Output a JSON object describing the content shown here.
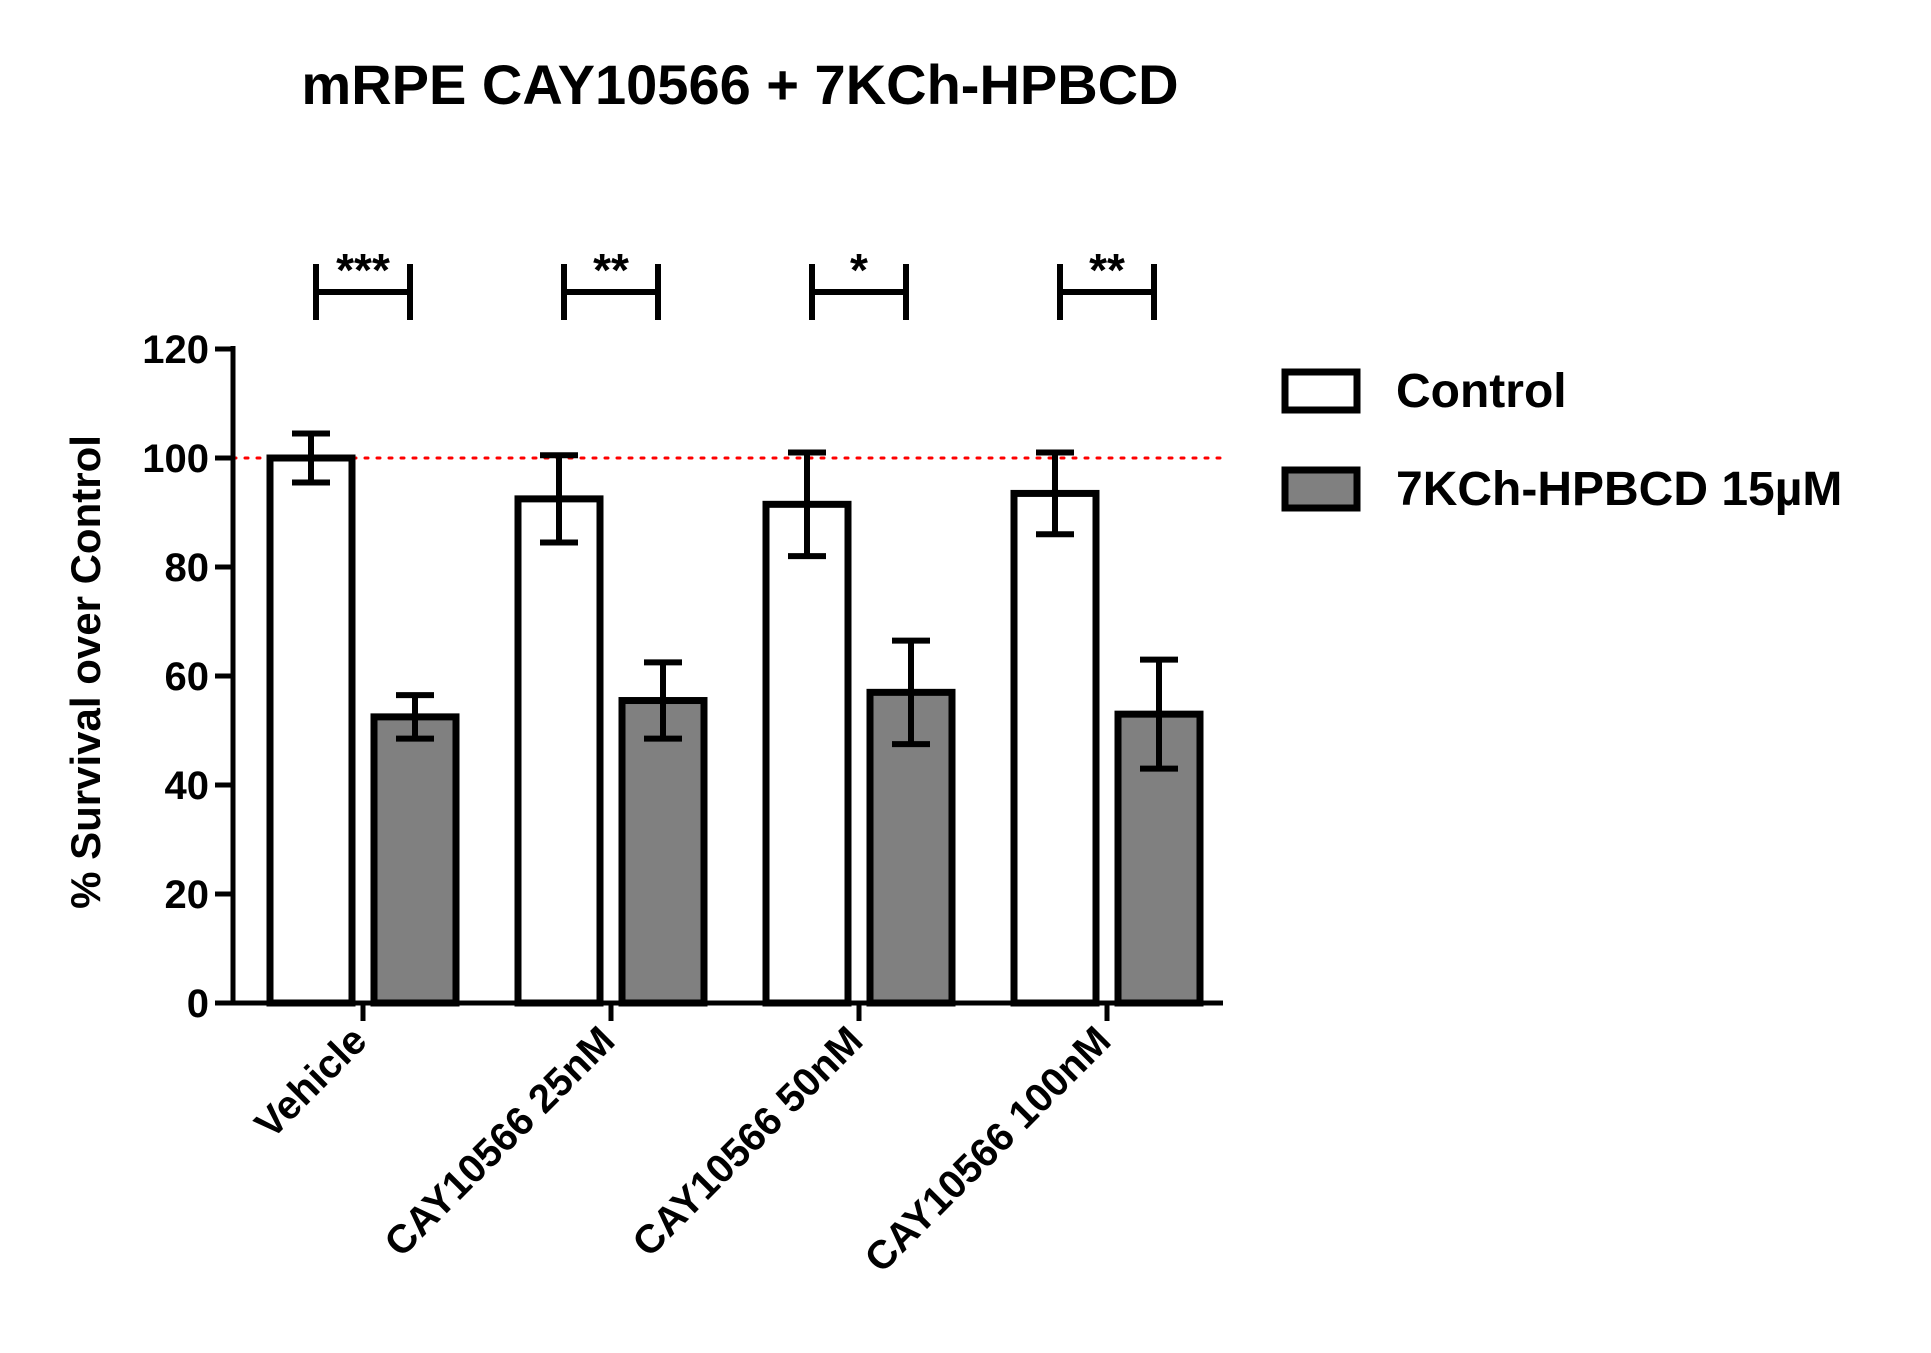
{
  "chart_data": {
    "type": "bar",
    "title": "mRPE CAY10566 + 7KCh-HPBCD",
    "xlabel": "",
    "ylabel": "% Survival over Control",
    "ylim": [
      0,
      120
    ],
    "yticks": [
      0,
      20,
      40,
      60,
      80,
      100,
      120
    ],
    "categories": [
      "Vehicle",
      "CAY10566 25nM",
      "CAY10566 50nM",
      "CAY10566 100nM"
    ],
    "series": [
      {
        "name": "Control",
        "color": "#ffffff",
        "values": [
          100,
          92.5,
          91.5,
          93.5
        ],
        "errors": [
          4.5,
          8,
          9.5,
          7.5
        ]
      },
      {
        "name": "7KCh-HPBCD 15µM",
        "color": "#808080",
        "values": [
          52.5,
          55.5,
          57,
          53
        ],
        "errors": [
          4,
          7,
          9.5,
          10
        ]
      }
    ],
    "reference_line": {
      "value": 100,
      "color": "#ff0000",
      "style": "dotted"
    },
    "significance": [
      "***",
      "**",
      "*",
      "**"
    ],
    "legend_position": "right",
    "grid": false
  }
}
